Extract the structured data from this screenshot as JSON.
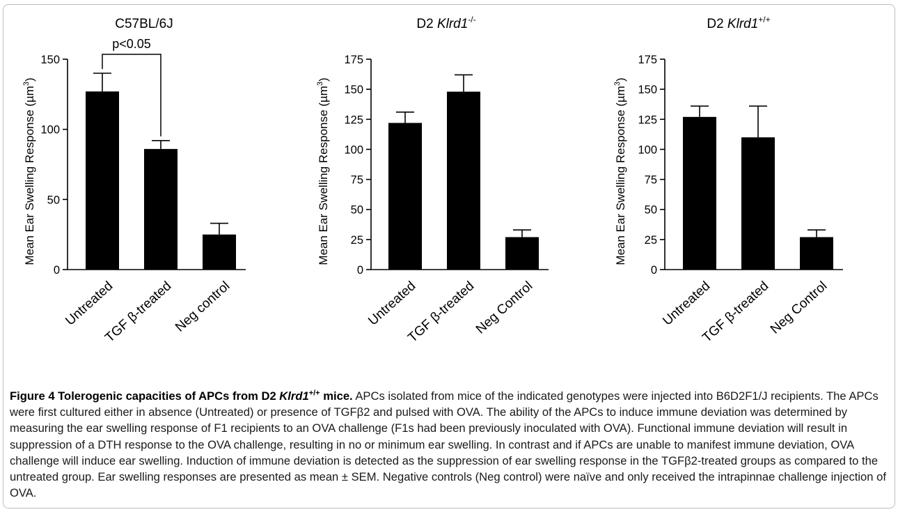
{
  "chart_data": [
    {
      "type": "bar",
      "title": "C57BL/6J",
      "ylabel": "Mean Ear Swelling Response (µm",
      "ylabel_sup": "3",
      "ylabel_close": ")",
      "categories": [
        "Untreated",
        "TGF β-treated",
        "Neg control"
      ],
      "values": [
        127,
        86,
        25
      ],
      "errors": [
        13,
        6,
        8
      ],
      "ylim": [
        0,
        150
      ],
      "yticks": [
        0,
        50,
        100,
        150
      ],
      "annotation": "p<0.05"
    },
    {
      "type": "bar",
      "title": "D2 ",
      "title_italic": "Klrd1",
      "title_sup": "-/-",
      "ylabel": "Mean Ear Swelling Response (µm",
      "ylabel_sup": "3",
      "ylabel_close": ")",
      "categories": [
        "Untreated",
        "TGF β-treated",
        "Neg Control"
      ],
      "values": [
        122,
        148,
        27
      ],
      "errors": [
        9,
        14,
        6
      ],
      "ylim": [
        0,
        175
      ],
      "yticks": [
        0,
        25,
        50,
        75,
        100,
        125,
        150,
        175
      ]
    },
    {
      "type": "bar",
      "title": "D2 ",
      "title_italic": "Klrd1",
      "title_sup": "+/+",
      "ylabel": "Mean Ear Swelling Response (µm",
      "ylabel_sup": "3",
      "ylabel_close": ")",
      "categories": [
        "Untreated",
        "TGF β-treated",
        "Neg Control"
      ],
      "values": [
        127,
        110,
        27
      ],
      "errors": [
        9,
        26,
        6
      ],
      "ylim": [
        0,
        175
      ],
      "yticks": [
        0,
        25,
        50,
        75,
        100,
        125,
        150,
        175
      ]
    }
  ],
  "caption": {
    "fig_label": "Figure 4 Tolerogenic capacities of APCs from D2 ",
    "fig_italic": "Klrd1",
    "fig_sup": "+/+",
    "fig_end": " mice.",
    "body": " APCs isolated from mice of the indicated genotypes were injected into B6D2F1/J recipients. The APCs were first cultured either in absence (Untreated) or presence of TGFβ2 and pulsed with OVA. The ability of the APCs to induce immune deviation was determined by measuring the ear swelling response of F1 recipients to an OVA challenge (F1s had been previously inoculated with OVA). Functional immune deviation will result in suppression of a DTH response to the OVA challenge, resulting in no or minimum ear swelling. In contrast and if APCs are unable to manifest immune deviation, OVA challenge will induce ear swelling. Induction of immune deviation is detected as the suppression of ear swelling response in the TGFβ2-treated groups as compared to the untreated group. Ear swelling responses are presented as mean ± SEM. Negative controls (Neg control) were naïve and only received the intrapinnae challenge injection of OVA."
  }
}
